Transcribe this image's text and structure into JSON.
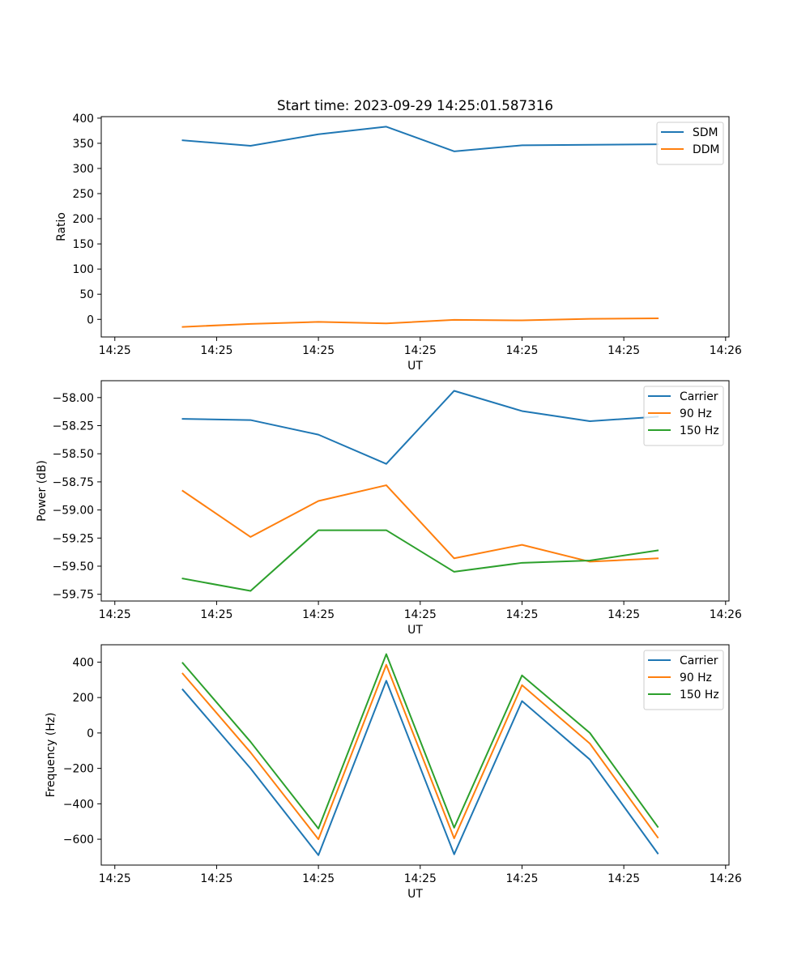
{
  "figure_title": "Start time: 2023-09-29 14:25:01.587316",
  "colors": {
    "blue": "#1f77b4",
    "orange": "#ff7f0e",
    "green": "#2ca02c",
    "frame": "#000000",
    "legend_border": "#cccccc"
  },
  "chart_data": [
    {
      "type": "line",
      "title": "Start time: 2023-09-29 14:25:01.587316",
      "xlabel": "UT",
      "ylabel": "Ratio",
      "x": [
        1,
        2,
        3,
        4,
        5,
        6,
        7,
        8
      ],
      "xlim": [
        -0.2,
        9.05
      ],
      "xticks": [
        0,
        1.5,
        3,
        4.5,
        6,
        7.5,
        9
      ],
      "xtick_labels": [
        "14:25",
        "14:25",
        "14:25",
        "14:25",
        "14:25",
        "14:25",
        "14:26"
      ],
      "ylim": [
        -35,
        403
      ],
      "yticks": [
        0,
        50,
        100,
        150,
        200,
        250,
        300,
        350,
        400
      ],
      "ytick_labels": [
        "0",
        "50",
        "100",
        "150",
        "200",
        "250",
        "300",
        "350",
        "400"
      ],
      "legend_position": "top-right",
      "series": [
        {
          "name": "SDM",
          "color": "#1f77b4",
          "values": [
            356,
            345,
            368,
            383,
            334,
            346,
            347,
            348
          ]
        },
        {
          "name": "DDM",
          "color": "#ff7f0e",
          "values": [
            -15,
            -9,
            -5,
            -8,
            -1,
            -2,
            1,
            2
          ]
        }
      ]
    },
    {
      "type": "line",
      "xlabel": "UT",
      "ylabel": "Power (dB)",
      "x": [
        1,
        2,
        3,
        4,
        5,
        6,
        7,
        8
      ],
      "xlim": [
        -0.2,
        9.05
      ],
      "xticks": [
        0,
        1.5,
        3,
        4.5,
        6,
        7.5,
        9
      ],
      "xtick_labels": [
        "14:25",
        "14:25",
        "14:25",
        "14:25",
        "14:25",
        "14:25",
        "14:26"
      ],
      "ylim": [
        -59.81,
        -57.85
      ],
      "yticks": [
        -59.75,
        -59.5,
        -59.25,
        -59.0,
        -58.75,
        -58.5,
        -58.25,
        -58.0
      ],
      "ytick_labels": [
        "−59.75",
        "−59.50",
        "−59.25",
        "−59.00",
        "−58.75",
        "−58.50",
        "−58.25",
        "−58.00"
      ],
      "legend_position": "top-right",
      "series": [
        {
          "name": "Carrier",
          "color": "#1f77b4",
          "values": [
            -58.19,
            -58.2,
            -58.33,
            -58.59,
            -57.94,
            -58.12,
            -58.21,
            -58.17
          ]
        },
        {
          "name": "90 Hz",
          "color": "#ff7f0e",
          "values": [
            -58.83,
            -59.24,
            -58.92,
            -58.78,
            -59.43,
            -59.31,
            -59.46,
            -59.43
          ]
        },
        {
          "name": "150 Hz",
          "color": "#2ca02c",
          "values": [
            -59.61,
            -59.72,
            -59.18,
            -59.18,
            -59.55,
            -59.47,
            -59.45,
            -59.36
          ]
        }
      ]
    },
    {
      "type": "line",
      "xlabel": "UT",
      "ylabel": "Frequency (Hz)",
      "x": [
        1,
        2,
        3,
        4,
        5,
        6,
        7,
        8
      ],
      "xlim": [
        -0.2,
        9.05
      ],
      "xticks": [
        0,
        1.5,
        3,
        4.5,
        6,
        7.5,
        9
      ],
      "xtick_labels": [
        "14:25",
        "14:25",
        "14:25",
        "14:25",
        "14:25",
        "14:25",
        "14:26"
      ],
      "ylim": [
        -746,
        498
      ],
      "yticks": [
        -600,
        -400,
        -200,
        0,
        200,
        400
      ],
      "ytick_labels": [
        "−600",
        "−400",
        "−200",
        "0",
        "200",
        "400"
      ],
      "legend_position": "top-right",
      "series": [
        {
          "name": "Carrier",
          "color": "#1f77b4",
          "values": [
            245,
            -200,
            -690,
            295,
            -685,
            180,
            -150,
            -680
          ]
        },
        {
          "name": "90 Hz",
          "color": "#ff7f0e",
          "values": [
            335,
            -110,
            -600,
            385,
            -595,
            270,
            -60,
            -590
          ]
        },
        {
          "name": "150 Hz",
          "color": "#2ca02c",
          "values": [
            395,
            -50,
            -540,
            445,
            -535,
            325,
            0,
            -530
          ]
        }
      ]
    }
  ]
}
